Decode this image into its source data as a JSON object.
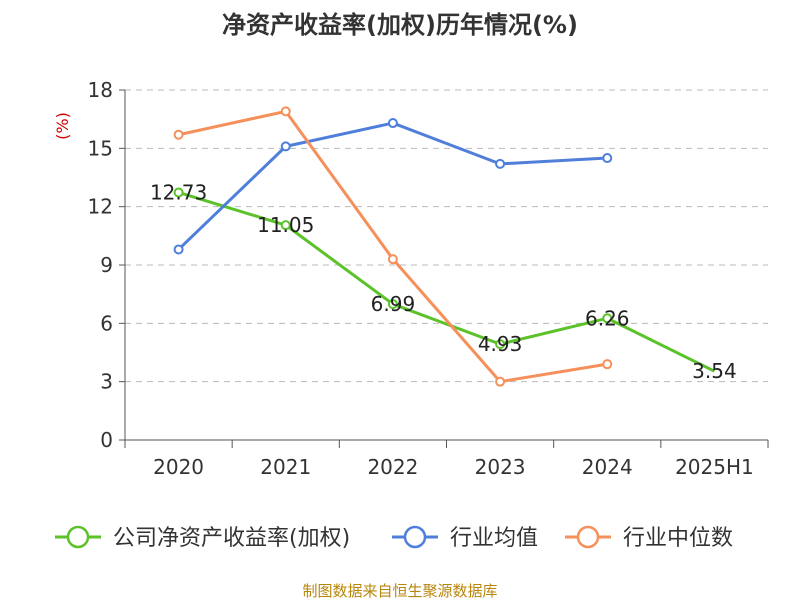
{
  "chart_data": {
    "type": "line",
    "title": "净资产收益率(加权)历年情况(%)",
    "unit_label": "(%)",
    "categories": [
      "2020",
      "2021",
      "2022",
      "2023",
      "2024",
      "2025H1"
    ],
    "yticks": [
      "0",
      "3",
      "6",
      "9",
      "12",
      "15",
      "18"
    ],
    "ylim": [
      0,
      18
    ],
    "grid": true,
    "legend_position": "bottom",
    "series": [
      {
        "name": "公司净资产收益率(加权)",
        "color": "#5cc22a",
        "values": [
          12.73,
          11.05,
          6.99,
          4.93,
          6.26,
          3.54
        ],
        "labels": [
          "12.73",
          "11.05",
          "6.99",
          "4.93",
          "6.26",
          "3.54"
        ]
      },
      {
        "name": "行业均值",
        "color": "#4f7fdb",
        "values": [
          9.8,
          15.1,
          16.3,
          14.2,
          14.5,
          null
        ]
      },
      {
        "name": "行业中位数",
        "color": "#f5905a",
        "values": [
          15.7,
          16.9,
          9.3,
          3.0,
          3.9,
          null
        ]
      }
    ],
    "source": "制图数据来自恒生聚源数据库"
  }
}
